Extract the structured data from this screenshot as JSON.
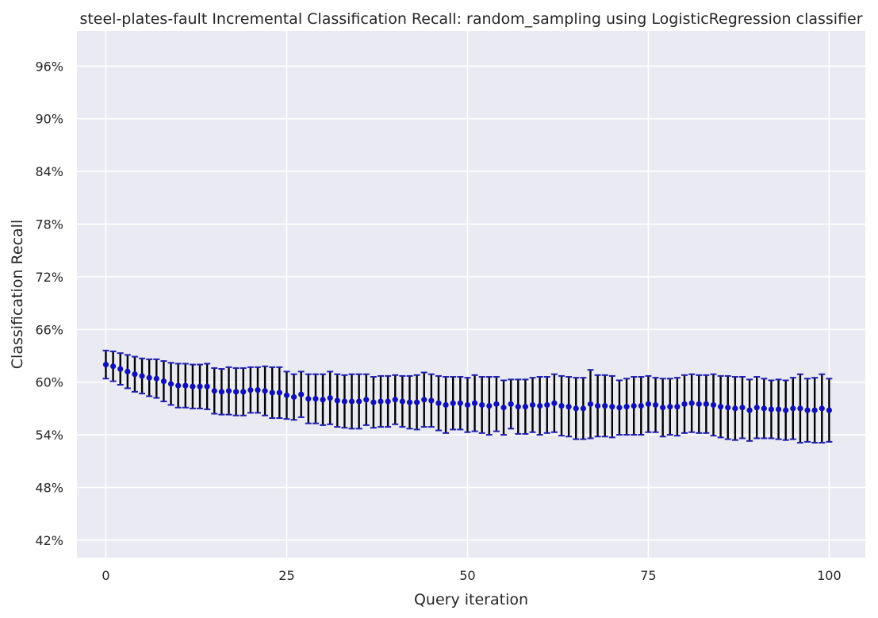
{
  "chart_data": {
    "type": "scatter",
    "title": "steel-plates-fault Incremental Classification Recall: random_sampling using LogisticRegression classifier",
    "xlabel": "Query iteration",
    "ylabel": "Classification Recall",
    "xlim": [
      -4,
      105
    ],
    "ylim": [
      40,
      100
    ],
    "xticks": [
      0,
      25,
      50,
      75,
      100
    ],
    "yticks": [
      42,
      48,
      54,
      60,
      66,
      72,
      78,
      84,
      90,
      96
    ],
    "ytick_suffix": "%",
    "grid": true,
    "colors": {
      "marker": "#1010b8",
      "errorbar": "#000000",
      "cap": "#1f1fb4",
      "background": "#eaeaf2"
    },
    "series": [
      {
        "x": [
          0,
          1,
          2,
          3,
          4,
          5,
          6,
          7,
          8,
          9,
          10,
          11,
          12,
          13,
          14,
          15,
          16,
          17,
          18,
          19,
          20,
          21,
          22,
          23,
          24,
          25,
          26,
          27,
          28,
          29,
          30,
          31,
          32,
          33,
          34,
          35,
          36,
          37,
          38,
          39,
          40,
          41,
          42,
          43,
          44,
          45,
          46,
          47,
          48,
          49,
          50,
          51,
          52,
          53,
          54,
          55,
          56,
          57,
          58,
          59,
          60,
          61,
          62,
          63,
          64,
          65,
          66,
          67,
          68,
          69,
          70,
          71,
          72,
          73,
          74,
          75,
          76,
          77,
          78,
          79,
          80,
          81,
          82,
          83,
          84,
          85,
          86,
          87,
          88,
          89,
          90,
          91,
          92,
          93,
          94,
          95,
          96,
          97,
          98,
          99,
          100
        ],
        "y": [
          62.0,
          61.8,
          61.5,
          61.2,
          60.9,
          60.7,
          60.5,
          60.4,
          60.1,
          59.8,
          59.6,
          59.6,
          59.5,
          59.5,
          59.5,
          59.0,
          58.9,
          59.0,
          58.9,
          58.9,
          59.1,
          59.1,
          59.0,
          58.8,
          58.8,
          58.5,
          58.3,
          58.6,
          58.1,
          58.1,
          58.0,
          58.2,
          57.9,
          57.8,
          57.8,
          57.8,
          58.0,
          57.7,
          57.8,
          57.8,
          58.0,
          57.8,
          57.7,
          57.7,
          58.0,
          57.9,
          57.6,
          57.4,
          57.6,
          57.6,
          57.4,
          57.6,
          57.4,
          57.3,
          57.5,
          57.1,
          57.5,
          57.2,
          57.2,
          57.4,
          57.3,
          57.4,
          57.6,
          57.3,
          57.2,
          57.0,
          57.0,
          57.5,
          57.3,
          57.3,
          57.2,
          57.1,
          57.2,
          57.3,
          57.3,
          57.5,
          57.4,
          57.1,
          57.2,
          57.2,
          57.5,
          57.6,
          57.5,
          57.5,
          57.4,
          57.2,
          57.1,
          57.0,
          57.1,
          56.8,
          57.1,
          57.0,
          56.9,
          56.9,
          56.8,
          57.0,
          57.0,
          56.8,
          56.8,
          57.0,
          56.8
        ],
        "err": [
          1.6,
          1.7,
          1.8,
          1.9,
          2.0,
          2.0,
          2.1,
          2.2,
          2.3,
          2.4,
          2.5,
          2.5,
          2.5,
          2.5,
          2.6,
          2.6,
          2.6,
          2.7,
          2.7,
          2.7,
          2.6,
          2.6,
          2.8,
          2.9,
          2.9,
          2.7,
          2.6,
          2.6,
          2.8,
          2.8,
          2.9,
          3.0,
          3.0,
          3.0,
          3.1,
          3.1,
          2.9,
          2.9,
          2.9,
          2.9,
          2.8,
          2.9,
          3.0,
          3.1,
          3.1,
          3.0,
          3.1,
          3.2,
          3.0,
          3.0,
          3.1,
          3.2,
          3.2,
          3.3,
          3.1,
          3.1,
          2.8,
          3.1,
          3.1,
          3.1,
          3.3,
          3.2,
          3.3,
          3.4,
          3.4,
          3.5,
          3.5,
          3.9,
          3.5,
          3.5,
          3.5,
          3.1,
          3.2,
          3.3,
          3.3,
          3.2,
          3.1,
          3.3,
          3.2,
          3.3,
          3.3,
          3.3,
          3.3,
          3.3,
          3.5,
          3.5,
          3.6,
          3.6,
          3.5,
          3.5,
          3.5,
          3.4,
          3.3,
          3.4,
          3.4,
          3.5,
          3.9,
          3.6,
          3.7,
          3.9,
          3.6
        ]
      }
    ]
  }
}
